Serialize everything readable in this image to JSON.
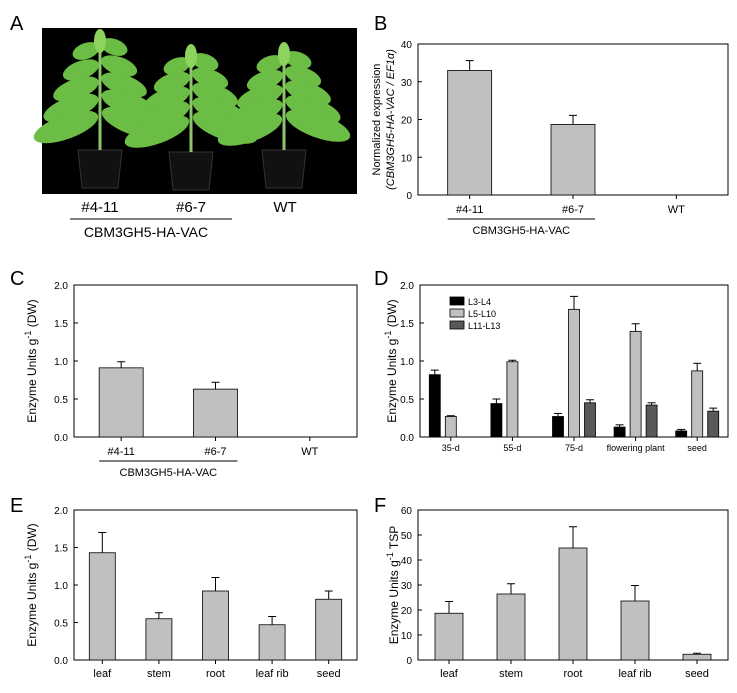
{
  "panels": {
    "a": {
      "letter": "A",
      "labels": [
        "#4-11",
        "#6-7",
        "WT"
      ],
      "group_label": "CBM3GH5-HA-VAC"
    }
  },
  "colors": {
    "bar": "#c0c0c0",
    "series_L3_L4": "#000000",
    "series_L5_L10": "#c0c0c0",
    "series_L11_L13": "#595959",
    "photo_background": "#000000",
    "leaf": "#6cbd45"
  },
  "icons": [
    "tobacco-plant-icon",
    "plant-pot-icon"
  ],
  "chart_data": [
    {
      "panel": "B",
      "type": "bar",
      "categories": [
        "#4-11",
        "#6-7",
        "WT"
      ],
      "values": [
        33.0,
        18.7,
        0
      ],
      "errors": [
        2.6,
        2.4,
        0
      ],
      "ylabel_line1": "Normalized expression",
      "ylabel_line2": "(CBM3GH5-HA-VAC / EF1α)",
      "ylim": [
        0,
        40
      ],
      "yticks": [
        "0",
        "10",
        "20",
        "30",
        "40"
      ],
      "group_label": "CBM3GH5-HA-VAC",
      "group_span": [
        0,
        1
      ],
      "legend": "none",
      "grid": false
    },
    {
      "panel": "C",
      "type": "bar",
      "categories": [
        "#4-11",
        "#6-7",
        "WT"
      ],
      "values": [
        0.91,
        0.63,
        0
      ],
      "errors": [
        0.08,
        0.09,
        0
      ],
      "ylabel": "Enzyme Units g-1 (DW)",
      "ylim": [
        0,
        2.0
      ],
      "yticks": [
        "0.0",
        "0.5",
        "1.0",
        "1.5",
        "2.0"
      ],
      "group_label": "CBM3GH5-HA-VAC",
      "group_span": [
        0,
        1
      ],
      "legend": "none",
      "grid": false
    },
    {
      "panel": "D",
      "type": "bar",
      "categories": [
        "35-d",
        "55-d",
        "75-d",
        "flowering plant",
        "seed"
      ],
      "series": [
        {
          "name": "L3-L4",
          "values": [
            0.82,
            0.44,
            0.27,
            0.13,
            0.08
          ],
          "errors": [
            0.06,
            0.06,
            0.04,
            0.03,
            0.02
          ]
        },
        {
          "name": "L5-L10",
          "values": [
            0.27,
            0.99,
            1.68,
            1.39,
            0.87
          ],
          "errors": [
            0.01,
            0.02,
            0.17,
            0.1,
            0.1
          ]
        },
        {
          "name": "L11-L13",
          "values": [
            null,
            null,
            0.45,
            0.42,
            0.34
          ],
          "errors": [
            null,
            null,
            0.04,
            0.03,
            0.04
          ]
        }
      ],
      "ylabel": "Enzyme Units g-1 (DW)",
      "ylim": [
        0,
        2.0
      ],
      "yticks": [
        "0.0",
        "0.5",
        "1.0",
        "1.5",
        "2.0"
      ],
      "legend": "top-left",
      "grid": false
    },
    {
      "panel": "E",
      "type": "bar",
      "categories": [
        "leaf",
        "stem",
        "root",
        "leaf rib",
        "seed"
      ],
      "values": [
        1.43,
        0.55,
        0.92,
        0.47,
        0.81
      ],
      "errors": [
        0.27,
        0.08,
        0.18,
        0.11,
        0.11
      ],
      "ylabel": "Enzyme Units g-1 (DW)",
      "ylim": [
        0,
        2.0
      ],
      "yticks": [
        "0.0",
        "0.5",
        "1.0",
        "1.5",
        "2.0"
      ],
      "legend": "none",
      "grid": false
    },
    {
      "panel": "F",
      "type": "bar",
      "categories": [
        "leaf",
        "stem",
        "root",
        "leaf rib",
        "seed"
      ],
      "values": [
        18.7,
        26.4,
        44.8,
        23.6,
        2.3
      ],
      "errors": [
        4.7,
        4.1,
        8.5,
        6.2,
        0.4
      ],
      "ylabel": "Enzyme Units g-1 TSP",
      "ylim": [
        0,
        60
      ],
      "yticks": [
        "0",
        "10",
        "20",
        "30",
        "40",
        "50",
        "60"
      ],
      "legend": "none",
      "grid": false
    }
  ]
}
